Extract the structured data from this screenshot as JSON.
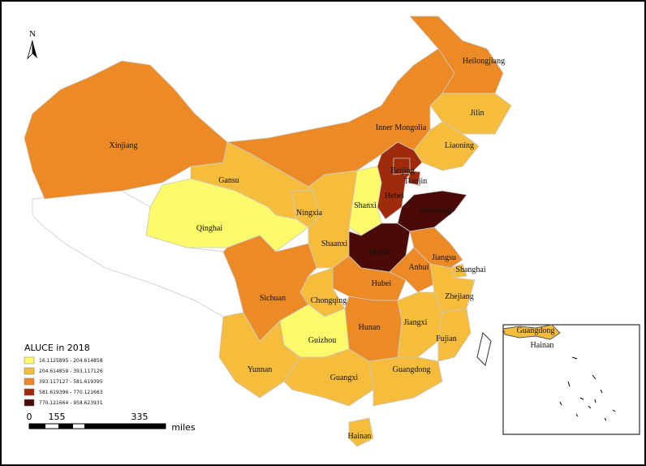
{
  "north": "N",
  "legend": {
    "title": "ALUCE in 2018",
    "classes": [
      {
        "label": "16.1125895 - 204.614858",
        "color": "#fafa6a"
      },
      {
        "label": "204.614859 - 393.117126",
        "color": "#f6bd3c"
      },
      {
        "label": "393.117127 - 581.619395",
        "color": "#ec8a26"
      },
      {
        "label": "581.619396 - 770.121663",
        "color": "#a02a0c"
      },
      {
        "label": "770.121664 - 958.623931",
        "color": "#4a0a05"
      }
    ]
  },
  "scale_bar": {
    "labels": [
      "0",
      "155",
      "335"
    ],
    "unit": "miles"
  },
  "provinces": [
    {
      "name": "Heilongjiang",
      "color": "#ec8a26"
    },
    {
      "name": "Jilin",
      "color": "#f6bd3c"
    },
    {
      "name": "Liaoning",
      "color": "#f6bd3c"
    },
    {
      "name": "Inner Mongolia",
      "color": "#ec8a26"
    },
    {
      "name": "Xinjiang",
      "color": "#ec8a26"
    },
    {
      "name": "Gansu",
      "color": "#f6bd3c"
    },
    {
      "name": "Beijing",
      "color": "#a02a0c"
    },
    {
      "name": "Tianjin",
      "color": "#a02a0c"
    },
    {
      "name": "Hebei",
      "color": "#a02a0c"
    },
    {
      "name": "Shanxi",
      "color": "#fafa6a"
    },
    {
      "name": "Shandong",
      "color": "#4a0a05"
    },
    {
      "name": "Ningxia",
      "color": "#f6bd3c"
    },
    {
      "name": "Qinghai",
      "color": "#fafa6a"
    },
    {
      "name": "Shaanxi",
      "color": "#f6bd3c"
    },
    {
      "name": "Henan",
      "color": "#4a0a05"
    },
    {
      "name": "Jiangsu",
      "color": "#ec8a26"
    },
    {
      "name": "Anhui",
      "color": "#ec8a26"
    },
    {
      "name": "Shanghai",
      "color": "#f6bd3c"
    },
    {
      "name": "Hubei",
      "color": "#ec8a26"
    },
    {
      "name": "Sichuan",
      "color": "#ec8a26"
    },
    {
      "name": "Chongqing",
      "color": "#f6bd3c"
    },
    {
      "name": "Zhejiang",
      "color": "#f6bd3c"
    },
    {
      "name": "Hunan",
      "color": "#ec8a26"
    },
    {
      "name": "Jiangxi",
      "color": "#f6bd3c"
    },
    {
      "name": "Fujian",
      "color": "#f6bd3c"
    },
    {
      "name": "Guizhou",
      "color": "#fafa6a"
    },
    {
      "name": "Yunnan",
      "color": "#f6bd3c"
    },
    {
      "name": "Guangxi",
      "color": "#f6bd3c"
    },
    {
      "name": "Guangdong",
      "color": "#f6bd3c"
    },
    {
      "name": "Hainan",
      "color": "#f6bd3c"
    }
  ],
  "inset": {
    "labels": [
      "Guangdong",
      "Hainan"
    ]
  }
}
